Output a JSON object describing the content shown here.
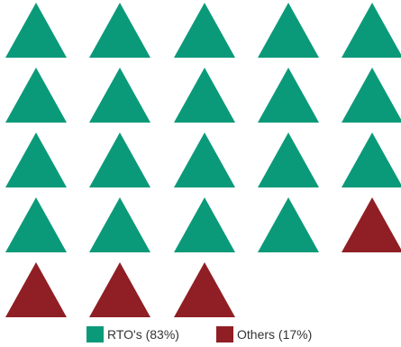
{
  "chart_data": {
    "type": "pictograph",
    "icon": "triangle-icon",
    "total_icons": 23,
    "series": [
      {
        "name": "RTO's",
        "label": "RTO's (83%)",
        "percent": 83,
        "count": 19,
        "color": "#0b9a79"
      },
      {
        "name": "Others",
        "label": "Others (17%)",
        "percent": 17,
        "count": 4,
        "color": "#8f1f24"
      }
    ],
    "legend_position": "bottom-center"
  }
}
